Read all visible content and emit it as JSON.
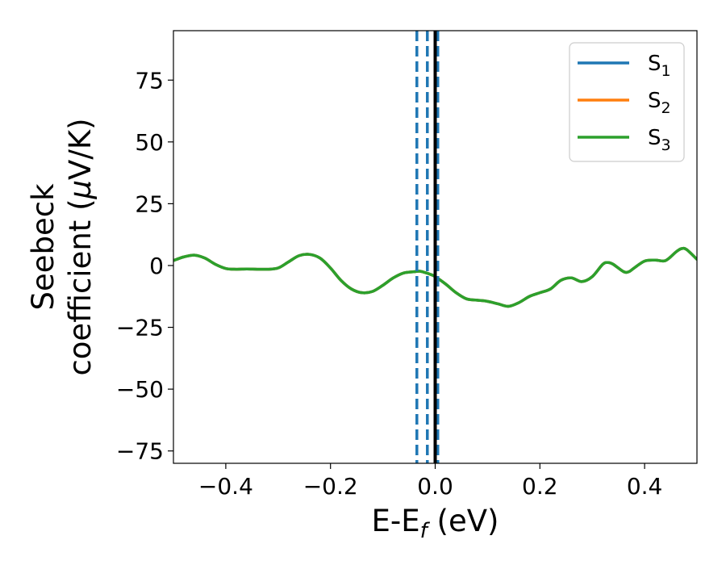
{
  "chart_data": {
    "type": "line",
    "xlabel": {
      "base": "E-E",
      "sub": "f",
      "suffix": " (eV)"
    },
    "ylabel": {
      "line1": "Seebeck",
      "line2_prefix": "coefficient  (",
      "line2_mu": "μ",
      "line2_suffix": "V/K)"
    },
    "xlim": [
      -0.5,
      0.5
    ],
    "ylim": [
      -80,
      95
    ],
    "xticks": [
      -0.4,
      -0.2,
      0.0,
      0.2,
      0.4
    ],
    "xtick_labels": [
      "−0.4",
      "−0.2",
      "0.0",
      "0.2",
      "0.4"
    ],
    "yticks": [
      75,
      50,
      25,
      0,
      -25,
      -50,
      -75
    ],
    "ytick_labels": [
      "75",
      "50",
      "25",
      "0",
      "−25",
      "−50",
      "−75"
    ],
    "grid": false,
    "legend_position": "top-right",
    "series": [
      {
        "name": "S",
        "sub": "1",
        "color": "#1f77b4",
        "x": [
          -0.5,
          -0.48,
          -0.46,
          -0.44,
          -0.42,
          -0.4,
          -0.38,
          -0.36,
          -0.34,
          -0.32,
          -0.3,
          -0.28,
          -0.26,
          -0.24,
          -0.22,
          -0.2,
          -0.18,
          -0.16,
          -0.14,
          -0.12,
          -0.1,
          -0.08,
          -0.06,
          -0.04,
          -0.03,
          -0.02,
          -0.01,
          0.0,
          0.02,
          0.04,
          0.06,
          0.08,
          0.1,
          0.12,
          0.14,
          0.16,
          0.18,
          0.2,
          0.22,
          0.24,
          0.26,
          0.28,
          0.3,
          0.32,
          0.33,
          0.34,
          0.36,
          0.37,
          0.38,
          0.4,
          0.42,
          0.44,
          0.46,
          0.47,
          0.48,
          0.5
        ],
        "y": [
          2,
          3.5,
          4.2,
          3.0,
          0.5,
          -1.2,
          -1.5,
          -1.4,
          -1.5,
          -1.5,
          -1.0,
          1.5,
          4.0,
          4.5,
          3.0,
          -1.0,
          -6.0,
          -9.5,
          -11.0,
          -10.5,
          -8.0,
          -5.0,
          -3.0,
          -2.5,
          -2.3,
          -2.8,
          -3.5,
          -4.5,
          -7.5,
          -11.0,
          -13.5,
          -14.0,
          -14.5,
          -15.5,
          -16.5,
          -15.0,
          -12.5,
          -11.0,
          -9.5,
          -6.0,
          -5.0,
          -6.5,
          -4.5,
          0.5,
          1.2,
          0.5,
          -2.5,
          -2.5,
          -1.0,
          1.8,
          2.2,
          2.0,
          5.5,
          6.8,
          6.5,
          2.5
        ]
      },
      {
        "name": "S",
        "sub": "2",
        "color": "#ff7f0e",
        "x": [
          -0.5,
          -0.48,
          -0.46,
          -0.44,
          -0.42,
          -0.4,
          -0.38,
          -0.36,
          -0.34,
          -0.32,
          -0.3,
          -0.28,
          -0.26,
          -0.24,
          -0.22,
          -0.2,
          -0.18,
          -0.16,
          -0.14,
          -0.12,
          -0.1,
          -0.08,
          -0.06,
          -0.04,
          -0.03,
          -0.02,
          -0.01,
          0.0,
          0.02,
          0.04,
          0.06,
          0.08,
          0.1,
          0.12,
          0.14,
          0.16,
          0.18,
          0.2,
          0.22,
          0.24,
          0.26,
          0.28,
          0.3,
          0.32,
          0.33,
          0.34,
          0.36,
          0.37,
          0.38,
          0.4,
          0.42,
          0.44,
          0.46,
          0.47,
          0.48,
          0.5
        ],
        "y": [
          2,
          3.5,
          4.2,
          3.0,
          0.5,
          -1.2,
          -1.5,
          -1.4,
          -1.5,
          -1.5,
          -1.0,
          1.5,
          4.0,
          4.5,
          3.0,
          -1.0,
          -6.0,
          -9.5,
          -11.0,
          -10.5,
          -8.0,
          -5.0,
          -3.0,
          -2.5,
          -2.3,
          -2.8,
          -3.5,
          -4.5,
          -7.5,
          -11.0,
          -13.5,
          -14.0,
          -14.5,
          -15.5,
          -16.5,
          -15.0,
          -12.5,
          -11.0,
          -9.5,
          -6.0,
          -5.0,
          -6.5,
          -4.5,
          0.5,
          1.2,
          0.5,
          -2.5,
          -2.5,
          -1.0,
          1.8,
          2.2,
          2.0,
          5.5,
          6.8,
          6.5,
          2.5
        ]
      },
      {
        "name": "S",
        "sub": "3",
        "color": "#2ca02c",
        "x": [
          -0.5,
          -0.48,
          -0.46,
          -0.44,
          -0.42,
          -0.4,
          -0.38,
          -0.36,
          -0.34,
          -0.32,
          -0.3,
          -0.28,
          -0.26,
          -0.24,
          -0.22,
          -0.2,
          -0.18,
          -0.16,
          -0.14,
          -0.12,
          -0.1,
          -0.08,
          -0.06,
          -0.04,
          -0.03,
          -0.02,
          -0.01,
          0.0,
          0.02,
          0.04,
          0.06,
          0.08,
          0.1,
          0.12,
          0.14,
          0.16,
          0.18,
          0.2,
          0.22,
          0.24,
          0.26,
          0.28,
          0.3,
          0.32,
          0.33,
          0.34,
          0.36,
          0.37,
          0.38,
          0.4,
          0.42,
          0.44,
          0.46,
          0.47,
          0.48,
          0.5
        ],
        "y": [
          2,
          3.5,
          4.2,
          3.0,
          0.5,
          -1.2,
          -1.5,
          -1.4,
          -1.5,
          -1.5,
          -1.0,
          1.5,
          4.0,
          4.5,
          3.0,
          -1.0,
          -6.0,
          -9.5,
          -11.0,
          -10.5,
          -8.0,
          -5.0,
          -3.0,
          -2.5,
          -2.3,
          -2.8,
          -3.5,
          -4.5,
          -7.5,
          -11.0,
          -13.5,
          -14.0,
          -14.5,
          -15.5,
          -16.5,
          -15.0,
          -12.5,
          -11.0,
          -9.5,
          -6.0,
          -5.0,
          -6.5,
          -4.5,
          0.5,
          1.2,
          0.5,
          -2.5,
          -2.5,
          -1.0,
          1.8,
          2.2,
          2.0,
          5.5,
          6.8,
          6.5,
          2.5
        ]
      }
    ],
    "vertical_lines": [
      {
        "x": -0.035,
        "style": "dashed",
        "color": "#1f77b4"
      },
      {
        "x": -0.015,
        "style": "dashed",
        "color": "#1f77b4"
      },
      {
        "x": 0.005,
        "style": "dashed",
        "color": "#1f77b4"
      },
      {
        "x": 0.0,
        "style": "solid",
        "color": "#000000"
      }
    ]
  }
}
